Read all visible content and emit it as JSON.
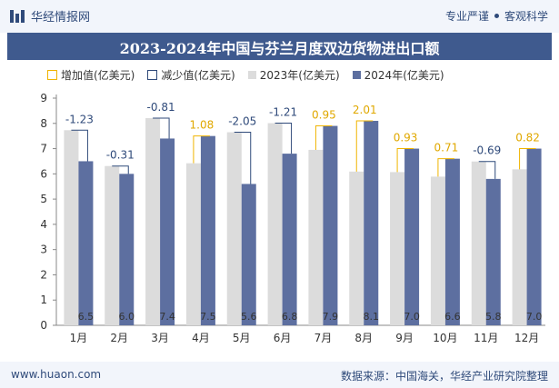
{
  "header": {
    "brand": "华经情报网",
    "links": [
      "专业严谨",
      "客观科学"
    ]
  },
  "title": "2023-2024年中国与芬兰月度双边货物进出口额",
  "legend": {
    "increase": "增加值(亿美元)",
    "decrease": "减少值(亿美元)",
    "y2023": "2023年(亿美元)",
    "y2024": "2024年(亿美元)"
  },
  "colors": {
    "bar2023": "#dcdcdc",
    "bar2024": "#5d6fa0",
    "increase": "#f0b400",
    "decrease": "#2f4a7a",
    "title_bg": "#3f5a8e"
  },
  "chart_data": {
    "type": "bar",
    "title": "2023-2024年中国与芬兰月度双边货物进出口额",
    "categories": [
      "1月",
      "2月",
      "3月",
      "4月",
      "5月",
      "6月",
      "7月",
      "8月",
      "9月",
      "10月",
      "11月",
      "12月"
    ],
    "series": [
      {
        "name": "2023年(亿美元)",
        "values": [
          7.73,
          6.31,
          8.21,
          6.42,
          7.65,
          8.01,
          6.95,
          6.09,
          6.07,
          5.89,
          6.49,
          6.18
        ]
      },
      {
        "name": "2024年(亿美元)",
        "values": [
          6.5,
          6.0,
          7.4,
          7.5,
          5.6,
          6.8,
          7.9,
          8.1,
          7.0,
          6.6,
          5.8,
          7.0
        ]
      }
    ],
    "changes": [
      -1.23,
      -0.31,
      -0.81,
      1.08,
      -2.05,
      -1.21,
      0.95,
      2.01,
      0.93,
      0.71,
      -0.69,
      0.82
    ],
    "ylim": [
      0,
      9
    ],
    "yticks": [
      0,
      1,
      2,
      3,
      4,
      5,
      6,
      7,
      8,
      9
    ]
  },
  "footer": {
    "site": "www.huaon.com",
    "source": "数据来源：中国海关，华经产业研究院整理"
  }
}
